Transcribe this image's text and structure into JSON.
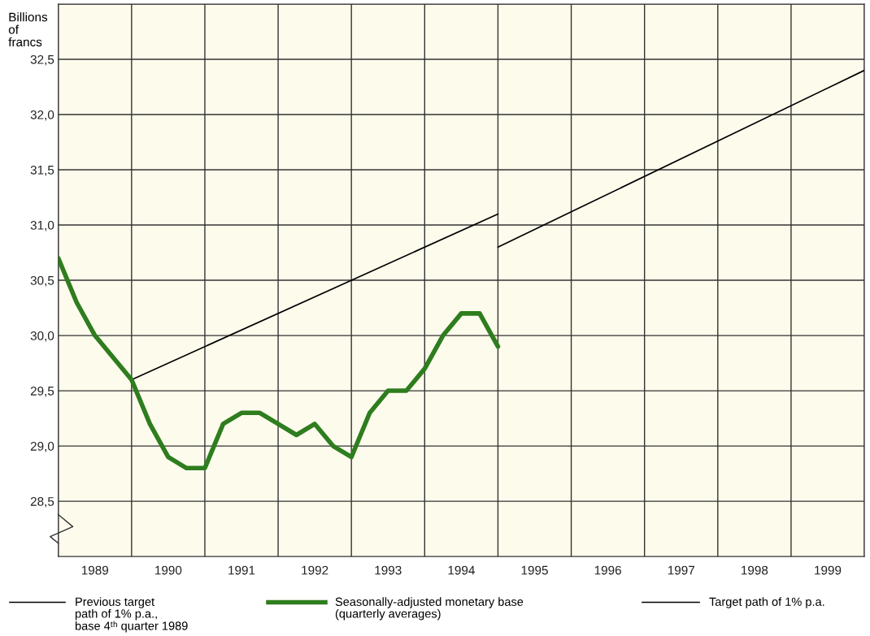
{
  "chart_data": {
    "type": "line",
    "ylabel": "Billions of francs",
    "xlim": [
      1989,
      2000
    ],
    "ylim": [
      28.0,
      33.0
    ],
    "xticks": [
      {
        "value": 1989,
        "label": null
      },
      {
        "value": 1989.5,
        "label": "1989"
      },
      {
        "value": 1990,
        "label": null
      },
      {
        "value": 1990.5,
        "label": "1990"
      },
      {
        "value": 1991,
        "label": null
      },
      {
        "value": 1991.5,
        "label": "1991"
      },
      {
        "value": 1992,
        "label": null
      },
      {
        "value": 1992.5,
        "label": "1992"
      },
      {
        "value": 1993,
        "label": null
      },
      {
        "value": 1993.5,
        "label": "1993"
      },
      {
        "value": 1994,
        "label": null
      },
      {
        "value": 1994.5,
        "label": "1994"
      },
      {
        "value": 1995,
        "label": null
      },
      {
        "value": 1995.5,
        "label": "1995"
      },
      {
        "value": 1996,
        "label": null
      },
      {
        "value": 1996.5,
        "label": "1996"
      },
      {
        "value": 1997,
        "label": null
      },
      {
        "value": 1997.5,
        "label": "1997"
      },
      {
        "value": 1998,
        "label": null
      },
      {
        "value": 1998.5,
        "label": "1998"
      },
      {
        "value": 1999,
        "label": null
      },
      {
        "value": 1999.5,
        "label": "1999"
      },
      {
        "value": 2000,
        "label": null
      }
    ],
    "yticks": [
      {
        "value": 28.5,
        "label": "28,5"
      },
      {
        "value": 29.0,
        "label": "29,0"
      },
      {
        "value": 29.5,
        "label": "29,5"
      },
      {
        "value": 30.0,
        "label": "30,0"
      },
      {
        "value": 30.5,
        "label": "30,5"
      },
      {
        "value": 31.0,
        "label": "31,0"
      },
      {
        "value": 31.5,
        "label": "31,5"
      },
      {
        "value": 32.0,
        "label": "32,0"
      },
      {
        "value": 32.5,
        "label": "32,5"
      },
      {
        "value": 33.0,
        "label": null
      }
    ],
    "grid": true,
    "legend": "bottom",
    "marker": "none",
    "line_style": "solid",
    "series": [
      {
        "name": "Previous target path of 1% p.a., base 4ᵗʰ quarter 1989",
        "color": "#000000",
        "x": [
          1990.0,
          1995.0
        ],
        "values": [
          29.6,
          31.1
        ]
      },
      {
        "name": "Seasonally-adjusted monetary base (quarterly averages)",
        "color": "#2e7d1e",
        "x": [
          1989.0,
          1989.25,
          1989.5,
          1989.75,
          1990.0,
          1990.25,
          1990.5,
          1990.75,
          1991.0,
          1991.25,
          1991.5,
          1991.75,
          1992.0,
          1992.25,
          1992.5,
          1992.75,
          1993.0,
          1993.25,
          1993.5,
          1993.75,
          1994.0,
          1994.25,
          1994.5,
          1994.75,
          1995.0
        ],
        "values": [
          30.7,
          30.3,
          30.0,
          29.8,
          29.6,
          29.2,
          28.9,
          28.8,
          28.8,
          29.2,
          29.3,
          29.3,
          29.2,
          29.1,
          29.2,
          29.0,
          28.9,
          29.3,
          29.5,
          29.5,
          29.7,
          30.0,
          30.2,
          30.2,
          29.9
        ]
      },
      {
        "name": "Target path of 1% p.a.",
        "color": "#000000",
        "x": [
          1995.0,
          2000.0
        ],
        "values": [
          30.8,
          32.4
        ]
      }
    ]
  }
}
